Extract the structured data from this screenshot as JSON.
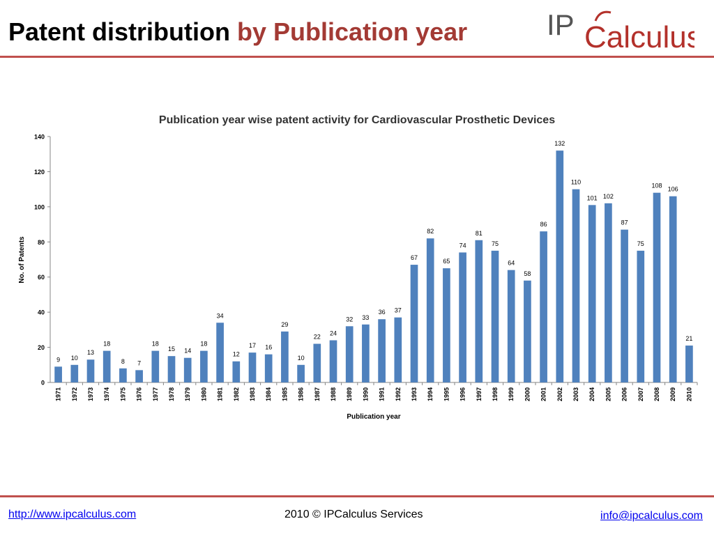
{
  "slide": {
    "title_part1": "Patent distribution",
    "title_part2": "by Publication year"
  },
  "logo": {
    "prefix": "IP",
    "text": "Calculus",
    "colors": {
      "prefix": "#555555",
      "main": "#b3312b",
      "arc": "#b3312b"
    }
  },
  "footer": {
    "left_link": "http://www.ipcalculus.com",
    "center_text": "2010 © IPCalculus Services",
    "right_link": "info@ipcalculus.com"
  },
  "colors": {
    "accent": "#c0504d",
    "bar": "#4f81bd",
    "title_highlight": "#a33a34"
  },
  "chart_data": {
    "type": "bar",
    "title": "Publication year wise patent activity for Cardiovascular Prosthetic Devices",
    "xlabel": "Publication year",
    "ylabel": "No. of Patents",
    "ylim": [
      0,
      140
    ],
    "yticks": [
      "0",
      "20",
      "40",
      "60",
      "80",
      "100",
      "120",
      "140"
    ],
    "grid": false,
    "legend": "none",
    "categories": [
      "1971",
      "1972",
      "1973",
      "1974",
      "1975",
      "1976",
      "1977",
      "1978",
      "1979",
      "1980",
      "1981",
      "1982",
      "1983",
      "1984",
      "1985",
      "1986",
      "1987",
      "1988",
      "1989",
      "1990",
      "1991",
      "1992",
      "1993",
      "1994",
      "1995",
      "1996",
      "1997",
      "1998",
      "1999",
      "2000",
      "2001",
      "2002",
      "2003",
      "2004",
      "2005",
      "2006",
      "2007",
      "2008",
      "2009",
      "2010"
    ],
    "values": [
      9,
      10,
      13,
      18,
      8,
      7,
      18,
      15,
      14,
      18,
      34,
      12,
      17,
      16,
      29,
      10,
      22,
      24,
      32,
      33,
      36,
      37,
      67,
      82,
      65,
      74,
      81,
      75,
      64,
      58,
      86,
      132,
      110,
      101,
      102,
      87,
      75,
      108,
      106,
      21
    ]
  }
}
